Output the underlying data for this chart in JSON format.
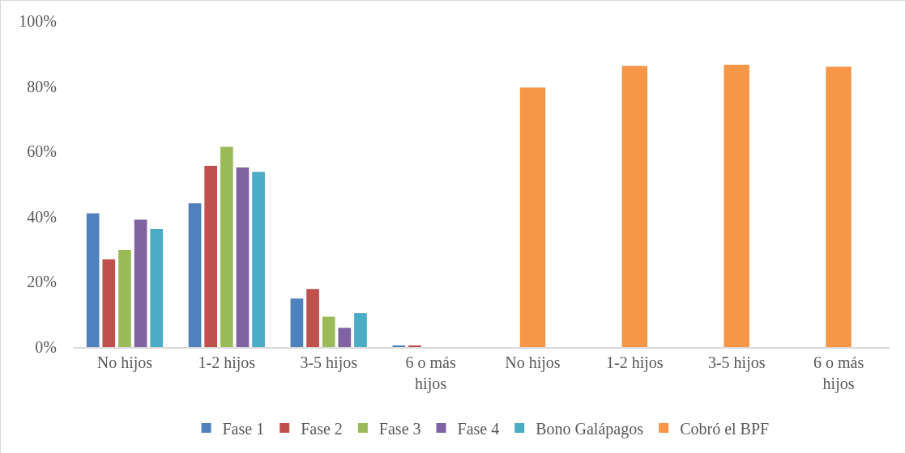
{
  "chart_data": {
    "type": "bar",
    "categories": [
      "No hijos",
      "1-2 hijos",
      "3-5 hijos",
      "6 o más hijos",
      "No hijos",
      "1-2 hijos",
      "3-5 hijos",
      "6 o más hijos"
    ],
    "series": [
      {
        "name": "Fase 1",
        "color": "#4f81bd",
        "values": [
          41.0,
          44.1,
          14.9,
          0.4,
          null,
          null,
          null,
          null
        ]
      },
      {
        "name": "Fase 2",
        "color": "#c0504d",
        "values": [
          26.9,
          55.6,
          17.8,
          0.3,
          null,
          null,
          null,
          null
        ]
      },
      {
        "name": "Fase 3",
        "color": "#9bbb59",
        "values": [
          29.8,
          61.4,
          9.3,
          0,
          null,
          null,
          null,
          null
        ]
      },
      {
        "name": "Fase 4",
        "color": "#8064a2",
        "values": [
          39.1,
          55.1,
          5.9,
          0,
          null,
          null,
          null,
          null
        ]
      },
      {
        "name": "Bono Galápagos",
        "color": "#4bacc6",
        "values": [
          36.2,
          53.7,
          10.4,
          0,
          null,
          null,
          null,
          null
        ]
      },
      {
        "name": "Cobró el BPF",
        "color": "#f79646",
        "values": [
          null,
          null,
          null,
          null,
          79.6,
          86.2,
          86.6,
          86.0
        ]
      }
    ],
    "ylim": [
      0,
      100
    ],
    "yticks": [
      {
        "value": 0,
        "label": "0%"
      },
      {
        "value": 20,
        "label": "20%"
      },
      {
        "value": 40,
        "label": "40%"
      },
      {
        "value": 60,
        "label": "60%"
      },
      {
        "value": 80,
        "label": "80%"
      },
      {
        "value": 100,
        "label": "100%"
      }
    ],
    "grid": false,
    "legend": "bottom"
  }
}
